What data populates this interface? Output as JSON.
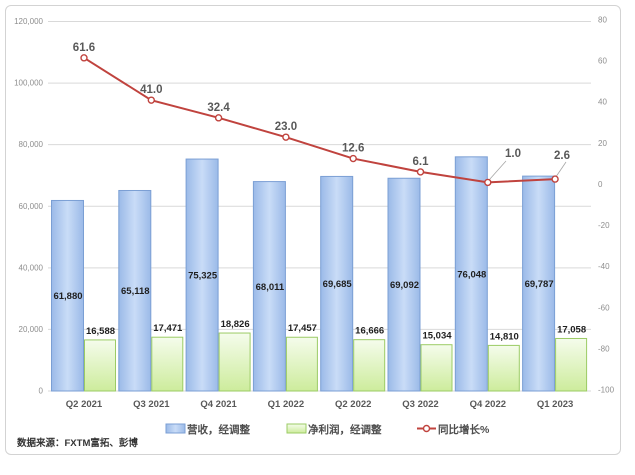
{
  "source_note": "数据来源：FXTM富拓、彭博",
  "chart_data": {
    "type": "combo-bar-line",
    "title": "",
    "categories": [
      "Q2 2021",
      "Q3 2021",
      "Q4 2021",
      "Q1 2022",
      "Q2 2022",
      "Q3 2022",
      "Q4 2022",
      "Q1 2023"
    ],
    "series": [
      {
        "name": "营收，经调整",
        "type": "bar",
        "axis": "left",
        "values": [
          61880,
          65118,
          75325,
          68011,
          69685,
          69092,
          76048,
          69787
        ],
        "labels": [
          "61,880",
          "65,118",
          "75,325",
          "68,011",
          "69,685",
          "69,092",
          "76,048",
          "69,787"
        ],
        "fill_light": "#C9DCF7",
        "fill_dark": "#9BBAE8",
        "edge_color": "#7B9FD4"
      },
      {
        "name": "净利润，经调整",
        "type": "bar",
        "axis": "left",
        "values": [
          16588,
          17471,
          18826,
          17457,
          16666,
          15034,
          14810,
          17058
        ],
        "labels": [
          "16,588",
          "17,471",
          "18,826",
          "17,457",
          "16,666",
          "15,034",
          "14,810",
          "17,058"
        ],
        "fill_light": "#F5FCEC",
        "fill_dark": "#CDEC9C",
        "edge_color": "#9BCB64"
      },
      {
        "name": "同比增长%",
        "type": "line",
        "axis": "right",
        "values": [
          61.6,
          41.0,
          32.4,
          23.0,
          12.6,
          6.1,
          1.0,
          2.6
        ],
        "labels": [
          "61.6",
          "41.0",
          "32.4",
          "23.0",
          "12.6",
          "6.1",
          "1.0",
          "2.6"
        ],
        "color": "#C0433E"
      }
    ],
    "left_axis": {
      "min": 0,
      "max": 120000,
      "step": 20000,
      "tick_labels": [
        "0",
        "20,000",
        "40,000",
        "60,000",
        "80,000",
        "100,000",
        "120,000"
      ]
    },
    "right_axis": {
      "min": -100,
      "max": 80,
      "step": 20,
      "tick_labels": [
        "-100",
        "-80",
        "-60",
        "-40",
        "-20",
        "0",
        "20",
        "40",
        "60",
        "80"
      ]
    },
    "grid": "horizontal",
    "gridline_color": "#D9D9D9",
    "legend_position": "bottom"
  }
}
